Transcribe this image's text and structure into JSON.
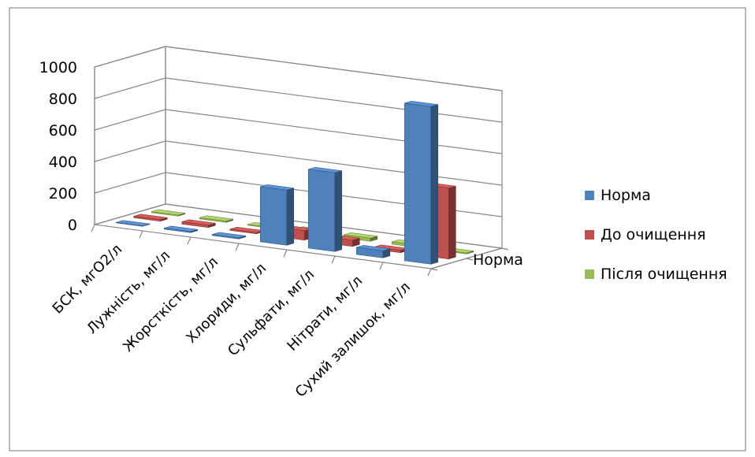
{
  "chart_data": {
    "type": "bar",
    "categories": [
      "БСК, мгО2/л",
      "Лужність, мг/л",
      "Жорсткість, мг/л",
      "Хлориди, мг/л",
      "Сульфати, мг/л",
      "Нітрати, мг/л",
      "Сухий залишок, мг/л"
    ],
    "series": [
      {
        "name": "Норма",
        "color": "#4F81BD",
        "values": [
          3,
          7,
          7,
          350,
          500,
          45,
          1000
        ]
      },
      {
        "name": "До очищення",
        "color": "#C0504D",
        "values": [
          10,
          15,
          8,
          60,
          40,
          15,
          450
        ]
      },
      {
        "name": "Після очищення",
        "color": "#9BBB59",
        "values": [
          6,
          8,
          5,
          18,
          20,
          15,
          6
        ]
      }
    ],
    "y_ticks": [
      "0",
      "200",
      "400",
      "600",
      "800",
      "1000"
    ],
    "ylim": [
      0,
      1000
    ],
    "depth_axis_label": "Норма",
    "legend_position": "right",
    "grid": true
  }
}
